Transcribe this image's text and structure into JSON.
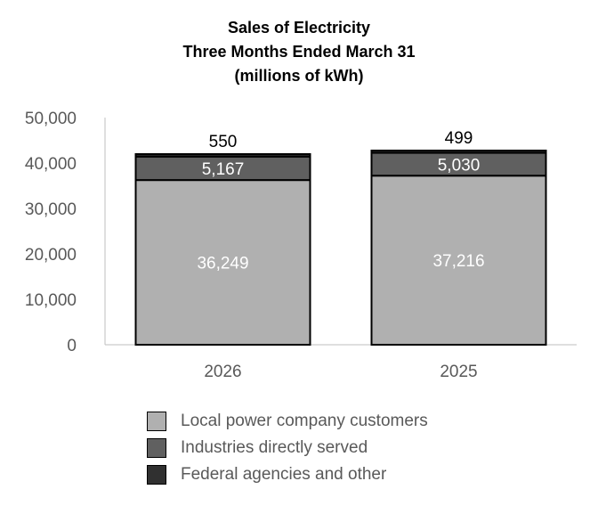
{
  "chart_data": {
    "type": "bar",
    "stacked": true,
    "title": [
      "Sales of Electricity",
      "Three Months Ended March 31",
      "(millions of kWh)"
    ],
    "categories": [
      "2026",
      "2025"
    ],
    "series": [
      {
        "name": "Local power company customers",
        "values": [
          36249,
          37216
        ],
        "color": "#b0b0b0",
        "label_color": "#ffffff"
      },
      {
        "name": "Industries directly served",
        "values": [
          5167,
          5030
        ],
        "color": "#606060",
        "label_color": "#ffffff"
      },
      {
        "name": "Federal agencies and other",
        "values": [
          550,
          499
        ],
        "color": "#303030",
        "label_color": "#000000"
      }
    ],
    "data_labels": [
      [
        "36,249",
        "5,167",
        "550"
      ],
      [
        "37,216",
        "5,030",
        "499"
      ]
    ],
    "yticks": [
      "0",
      "10,000",
      "20,000",
      "30,000",
      "40,000",
      "50,000"
    ],
    "ylim": [
      0,
      50000
    ],
    "grid": false,
    "legend_position": "bottom"
  }
}
